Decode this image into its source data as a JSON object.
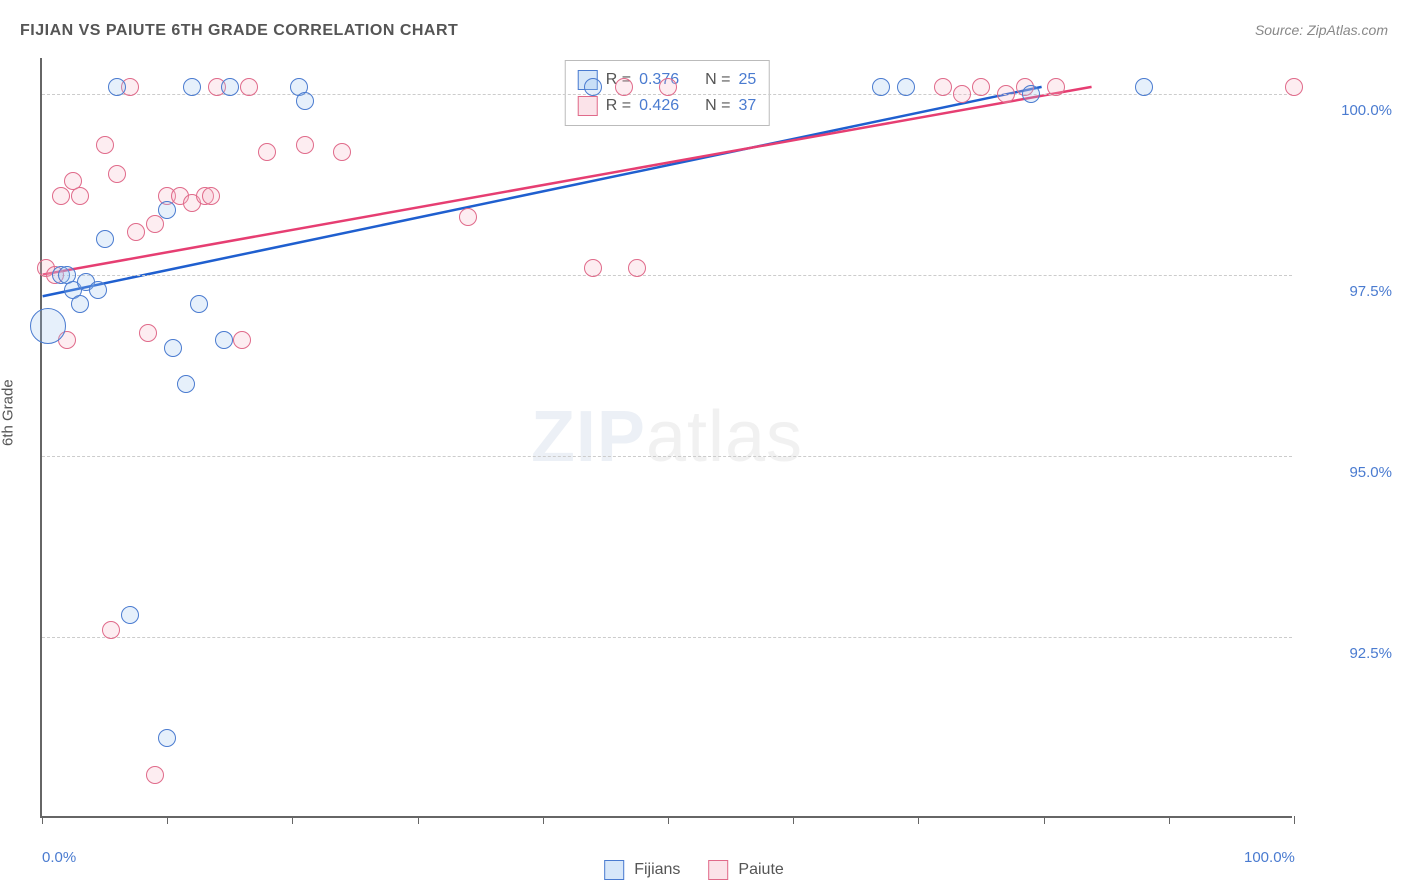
{
  "title": "FIJIAN VS PAIUTE 6TH GRADE CORRELATION CHART",
  "source": "Source: ZipAtlas.com",
  "ylabel": "6th Grade",
  "chart": {
    "type": "scatter",
    "xlim": [
      0,
      100
    ],
    "ylim": [
      90,
      100.5
    ],
    "background_color": "#ffffff",
    "grid_color": "#cccccc",
    "grid_dash": "4,4",
    "axis_color": "#666666",
    "label_fontsize": 15,
    "label_color": "#4a7bd0",
    "yticks": [
      92.5,
      95.0,
      97.5,
      100.0
    ],
    "ytick_labels": [
      "92.5%",
      "95.0%",
      "97.5%",
      "100.0%"
    ],
    "xticks": [
      0,
      10,
      20,
      30,
      40,
      50,
      60,
      70,
      80,
      90,
      100
    ],
    "xtick_labels_shown": {
      "0": "0.0%",
      "100": "100.0%"
    },
    "point_radius": 9,
    "point_stroke_width": 1.5,
    "point_fill_opacity": 0.25
  },
  "series": {
    "fijians": {
      "label": "Fijians",
      "fill_color": "#9cc3f0",
      "stroke_color": "#4a7bd0",
      "R": "0.376",
      "N": "25",
      "trend": {
        "x1": 0,
        "y1": 97.2,
        "x2": 80,
        "y2": 100.1,
        "color": "#1f5fcf",
        "width": 2.5
      },
      "points": [
        {
          "x": 0.5,
          "y": 96.8,
          "r": 18
        },
        {
          "x": 1.5,
          "y": 97.5
        },
        {
          "x": 2.0,
          "y": 97.5
        },
        {
          "x": 2.5,
          "y": 97.3
        },
        {
          "x": 3.5,
          "y": 97.4
        },
        {
          "x": 3.0,
          "y": 97.1
        },
        {
          "x": 4.5,
          "y": 97.3
        },
        {
          "x": 6.0,
          "y": 100.1
        },
        {
          "x": 5.0,
          "y": 98.0
        },
        {
          "x": 12.0,
          "y": 100.1
        },
        {
          "x": 12.5,
          "y": 97.1
        },
        {
          "x": 10.0,
          "y": 98.4
        },
        {
          "x": 11.5,
          "y": 96.0
        },
        {
          "x": 10.5,
          "y": 96.5
        },
        {
          "x": 14.5,
          "y": 96.6
        },
        {
          "x": 15.0,
          "y": 100.1
        },
        {
          "x": 20.5,
          "y": 100.1
        },
        {
          "x": 21.0,
          "y": 99.9
        },
        {
          "x": 10.0,
          "y": 91.1
        },
        {
          "x": 7.0,
          "y": 92.8
        },
        {
          "x": 44.0,
          "y": 100.1
        },
        {
          "x": 67.0,
          "y": 100.1
        },
        {
          "x": 69.0,
          "y": 100.1
        },
        {
          "x": 79.0,
          "y": 100.0
        },
        {
          "x": 88.0,
          "y": 100.1
        }
      ]
    },
    "paiute": {
      "label": "Paiute",
      "fill_color": "#f6b9c8",
      "stroke_color": "#e06a8a",
      "R": "0.426",
      "N": "37",
      "trend": {
        "x1": 0,
        "y1": 97.5,
        "x2": 84,
        "y2": 100.1,
        "color": "#e63e72",
        "width": 2.5
      },
      "points": [
        {
          "x": 0.3,
          "y": 97.6
        },
        {
          "x": 1.0,
          "y": 97.5
        },
        {
          "x": 1.5,
          "y": 98.6
        },
        {
          "x": 2.0,
          "y": 96.6
        },
        {
          "x": 2.5,
          "y": 98.8
        },
        {
          "x": 5.0,
          "y": 99.3
        },
        {
          "x": 3.0,
          "y": 98.6
        },
        {
          "x": 6.0,
          "y": 98.9
        },
        {
          "x": 7.0,
          "y": 100.1
        },
        {
          "x": 7.5,
          "y": 98.1
        },
        {
          "x": 9.0,
          "y": 98.2
        },
        {
          "x": 8.5,
          "y": 96.7
        },
        {
          "x": 10.0,
          "y": 98.6
        },
        {
          "x": 11.0,
          "y": 98.6
        },
        {
          "x": 12.0,
          "y": 98.5
        },
        {
          "x": 13.0,
          "y": 98.6
        },
        {
          "x": 14.0,
          "y": 100.1
        },
        {
          "x": 13.5,
          "y": 98.6
        },
        {
          "x": 16.0,
          "y": 96.6
        },
        {
          "x": 16.5,
          "y": 100.1
        },
        {
          "x": 18.0,
          "y": 99.2
        },
        {
          "x": 21.0,
          "y": 99.3
        },
        {
          "x": 24.0,
          "y": 99.2
        },
        {
          "x": 34.0,
          "y": 98.3
        },
        {
          "x": 44.0,
          "y": 97.6
        },
        {
          "x": 46.5,
          "y": 100.1
        },
        {
          "x": 47.5,
          "y": 97.6
        },
        {
          "x": 50.0,
          "y": 100.1
        },
        {
          "x": 72.0,
          "y": 100.1
        },
        {
          "x": 73.5,
          "y": 100.0
        },
        {
          "x": 75.0,
          "y": 100.1
        },
        {
          "x": 77.0,
          "y": 100.0
        },
        {
          "x": 78.5,
          "y": 100.1
        },
        {
          "x": 81.0,
          "y": 100.1
        },
        {
          "x": 100.0,
          "y": 100.1
        },
        {
          "x": 5.5,
          "y": 92.6
        },
        {
          "x": 9.0,
          "y": 90.6
        }
      ]
    }
  },
  "legend_top": {
    "R_label": "R =",
    "N_label": "N ="
  },
  "legend_bottom": {
    "items": [
      "fijians",
      "paiute"
    ]
  },
  "watermark": {
    "bold": "ZIP",
    "light": "atlas"
  }
}
